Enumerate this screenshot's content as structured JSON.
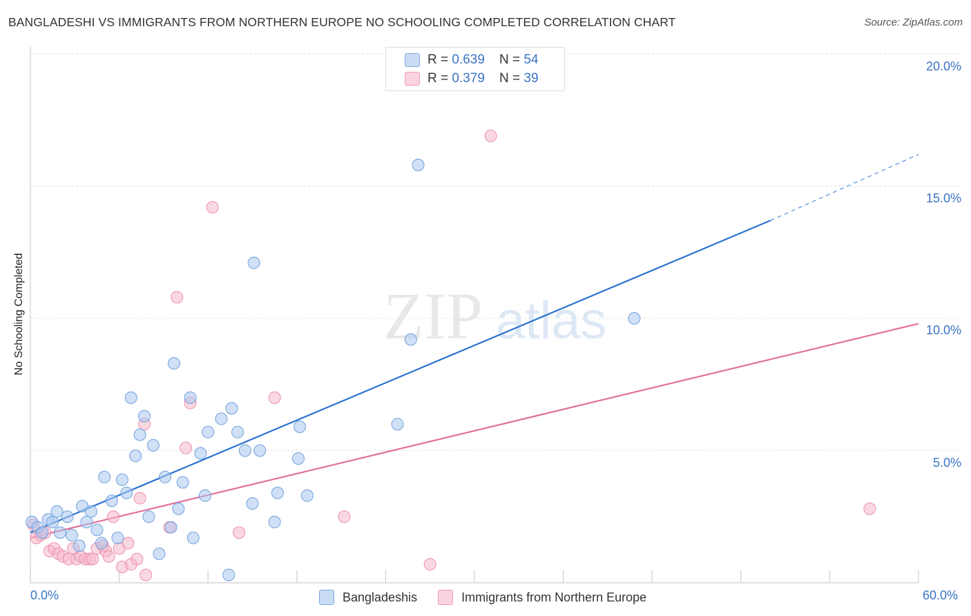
{
  "header": {
    "title": "BANGLADESHI VS IMMIGRANTS FROM NORTHERN EUROPE NO SCHOOLING COMPLETED CORRELATION CHART",
    "source": "Source: ZipAtlas.com"
  },
  "watermark": {
    "zip": "ZIP",
    "atlas": "atlas"
  },
  "legend_top": [
    {
      "r_label": "R = ",
      "r_value": "0.639",
      "n_label": "N = ",
      "n_value": "54",
      "color": "#a9c6ef"
    },
    {
      "r_label": "R = ",
      "r_value": "0.379",
      "n_label": "N = ",
      "n_value": "39",
      "color": "#f5b8ca"
    }
  ],
  "chart_data": {
    "type": "scatter",
    "title": "BANGLADESHI VS IMMIGRANTS FROM NORTHERN EUROPE NO SCHOOLING COMPLETED CORRELATION CHART",
    "xlabel": "",
    "ylabel": "No Schooling Completed",
    "xlim": [
      0,
      60
    ],
    "ylim": [
      0,
      20
    ],
    "x_tick_labels": [
      "0.0%",
      "60.0%"
    ],
    "y_tick_labels": [
      "5.0%",
      "10.0%",
      "15.0%",
      "20.0%"
    ],
    "y_ticks": [
      5,
      10,
      15,
      20
    ],
    "grid": true,
    "legend_position": "top-center",
    "series": [
      {
        "name": "Bangladeshis",
        "color": "#a9c6ef",
        "stroke": "#6f9fdc",
        "line_color": "#2a72d0",
        "trend": {
          "x": [
            0,
            50
          ],
          "y": [
            1.9,
            13.7
          ]
        },
        "trend_dashed": {
          "x": [
            50,
            60
          ],
          "y": [
            13.7,
            16.2
          ]
        },
        "points": [
          [
            0.1,
            2.3
          ],
          [
            0.5,
            2.1
          ],
          [
            0.8,
            1.9
          ],
          [
            1.2,
            2.4
          ],
          [
            1.5,
            2.3
          ],
          [
            1.8,
            2.7
          ],
          [
            2.0,
            1.9
          ],
          [
            2.5,
            2.5
          ],
          [
            2.8,
            1.8
          ],
          [
            3.3,
            1.4
          ],
          [
            3.5,
            2.9
          ],
          [
            3.8,
            2.3
          ],
          [
            4.1,
            2.7
          ],
          [
            4.5,
            2.0
          ],
          [
            4.8,
            1.5
          ],
          [
            5.0,
            4.0
          ],
          [
            5.5,
            3.1
          ],
          [
            5.9,
            1.7
          ],
          [
            6.2,
            3.9
          ],
          [
            6.5,
            3.4
          ],
          [
            6.8,
            7.0
          ],
          [
            7.1,
            4.8
          ],
          [
            7.4,
            5.6
          ],
          [
            7.7,
            6.3
          ],
          [
            8.0,
            2.5
          ],
          [
            8.3,
            5.2
          ],
          [
            8.7,
            1.1
          ],
          [
            9.1,
            4.0
          ],
          [
            9.5,
            2.1
          ],
          [
            9.7,
            8.3
          ],
          [
            10.0,
            2.8
          ],
          [
            10.3,
            3.8
          ],
          [
            10.8,
            7.0
          ],
          [
            11.0,
            1.7
          ],
          [
            11.5,
            4.9
          ],
          [
            11.8,
            3.3
          ],
          [
            12.0,
            5.7
          ],
          [
            12.9,
            6.2
          ],
          [
            13.4,
            0.3
          ],
          [
            13.6,
            6.6
          ],
          [
            14.0,
            5.7
          ],
          [
            14.5,
            5.0
          ],
          [
            15.0,
            3.0
          ],
          [
            15.1,
            12.1
          ],
          [
            15.5,
            5.0
          ],
          [
            16.5,
            2.3
          ],
          [
            16.7,
            3.4
          ],
          [
            18.1,
            4.7
          ],
          [
            18.2,
            5.9
          ],
          [
            18.7,
            3.3
          ],
          [
            25.7,
            9.2
          ],
          [
            24.8,
            6.0
          ],
          [
            26.2,
            15.8
          ],
          [
            40.8,
            10.0
          ]
        ]
      },
      {
        "name": "Immigrants from Northern Europe",
        "color": "#f5b8ca",
        "stroke": "#ec8eaa",
        "line_color": "#e0709a",
        "trend": {
          "x": [
            0,
            60
          ],
          "y": [
            1.7,
            9.8
          ]
        },
        "points": [
          [
            0.2,
            2.2
          ],
          [
            0.4,
            1.7
          ],
          [
            0.7,
            1.8
          ],
          [
            1.0,
            1.9
          ],
          [
            1.3,
            1.2
          ],
          [
            1.6,
            1.3
          ],
          [
            1.9,
            1.1
          ],
          [
            2.2,
            1.0
          ],
          [
            2.6,
            0.9
          ],
          [
            2.9,
            1.3
          ],
          [
            3.1,
            0.9
          ],
          [
            3.4,
            1.0
          ],
          [
            3.7,
            0.9
          ],
          [
            4.0,
            0.9
          ],
          [
            4.2,
            0.9
          ],
          [
            4.5,
            1.3
          ],
          [
            4.9,
            1.4
          ],
          [
            5.1,
            1.2
          ],
          [
            5.3,
            1.0
          ],
          [
            5.6,
            2.5
          ],
          [
            6.0,
            1.3
          ],
          [
            6.2,
            0.6
          ],
          [
            6.6,
            1.5
          ],
          [
            6.8,
            0.7
          ],
          [
            7.2,
            0.9
          ],
          [
            7.4,
            3.2
          ],
          [
            7.8,
            0.3
          ],
          [
            7.7,
            6.0
          ],
          [
            9.4,
            2.1
          ],
          [
            9.9,
            10.8
          ],
          [
            10.5,
            5.1
          ],
          [
            10.8,
            6.8
          ],
          [
            12.3,
            14.2
          ],
          [
            14.1,
            1.9
          ],
          [
            16.5,
            7.0
          ],
          [
            21.2,
            2.5
          ],
          [
            27.0,
            0.7
          ],
          [
            31.1,
            16.9
          ],
          [
            56.7,
            2.8
          ]
        ]
      }
    ]
  },
  "legend_bottom": [
    {
      "label": "Bangladeshis",
      "color": "#a9c6ef"
    },
    {
      "label": "Immigrants from Northern Europe",
      "color": "#f5b8ca"
    }
  ]
}
